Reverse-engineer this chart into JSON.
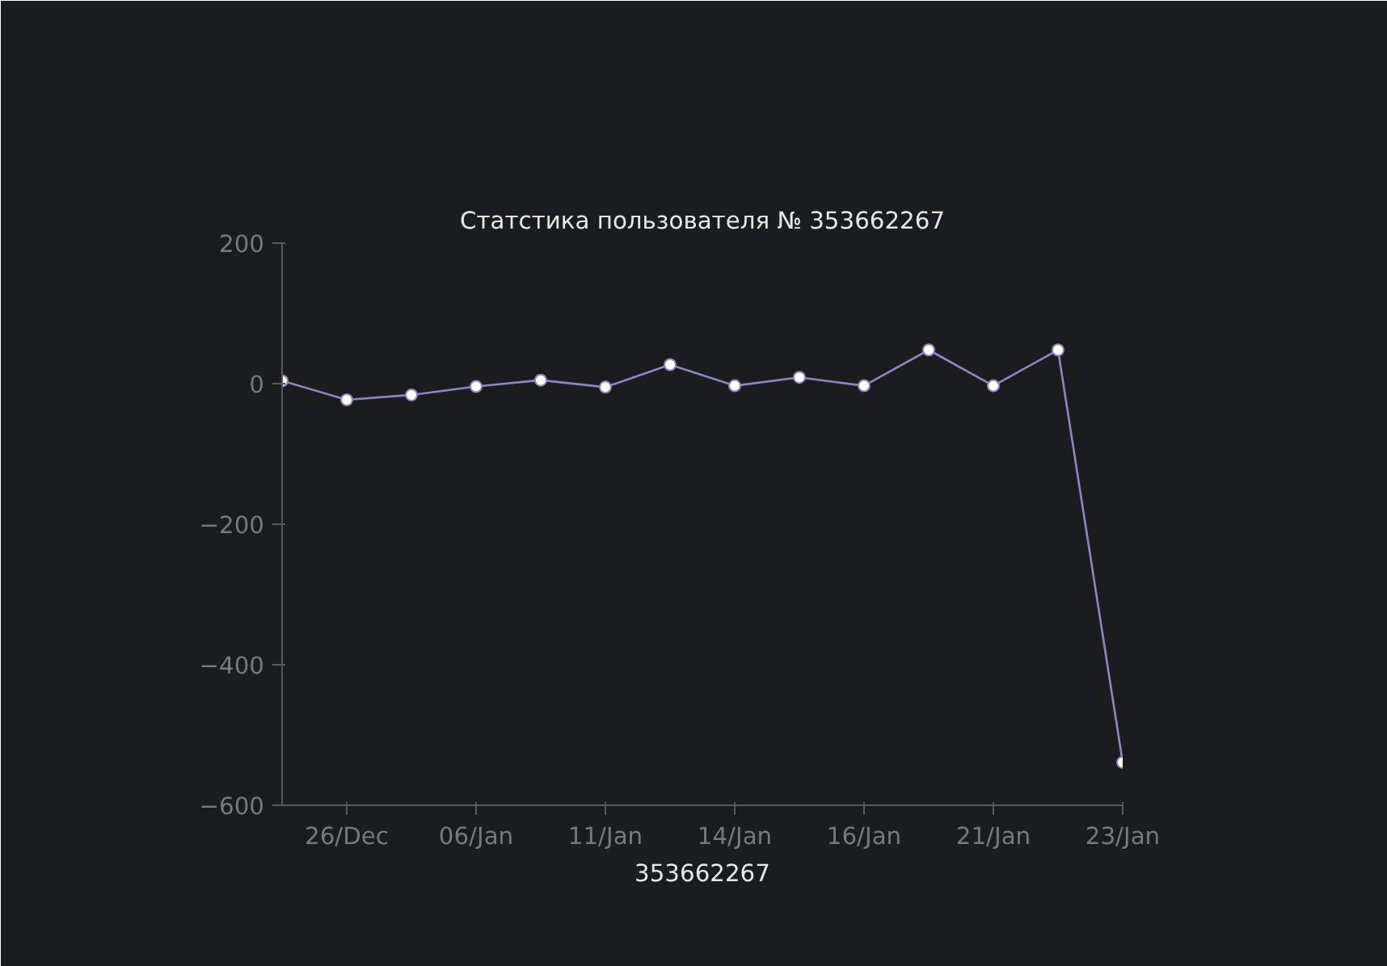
{
  "chart_data": {
    "type": "line",
    "title": "Статстика пользователя № 353662267",
    "xlabel": "353662267",
    "categories": [
      null,
      "26/Dec",
      null,
      "06/Jan",
      null,
      "11/Jan",
      null,
      "14/Jan",
      null,
      "16/Jan",
      null,
      "21/Jan",
      null,
      "23/Jan"
    ],
    "series": [
      {
        "color": "#8c88c8",
        "values": [
          4,
          -23,
          -16,
          -4,
          5,
          -5,
          27,
          -3,
          9,
          -3,
          48,
          -3,
          48,
          -539
        ]
      }
    ],
    "ylim": [
      -600,
      200
    ],
    "yticks": [
      -600,
      -400,
      -200,
      0,
      200
    ],
    "marker": "circle",
    "grid": false
  }
}
